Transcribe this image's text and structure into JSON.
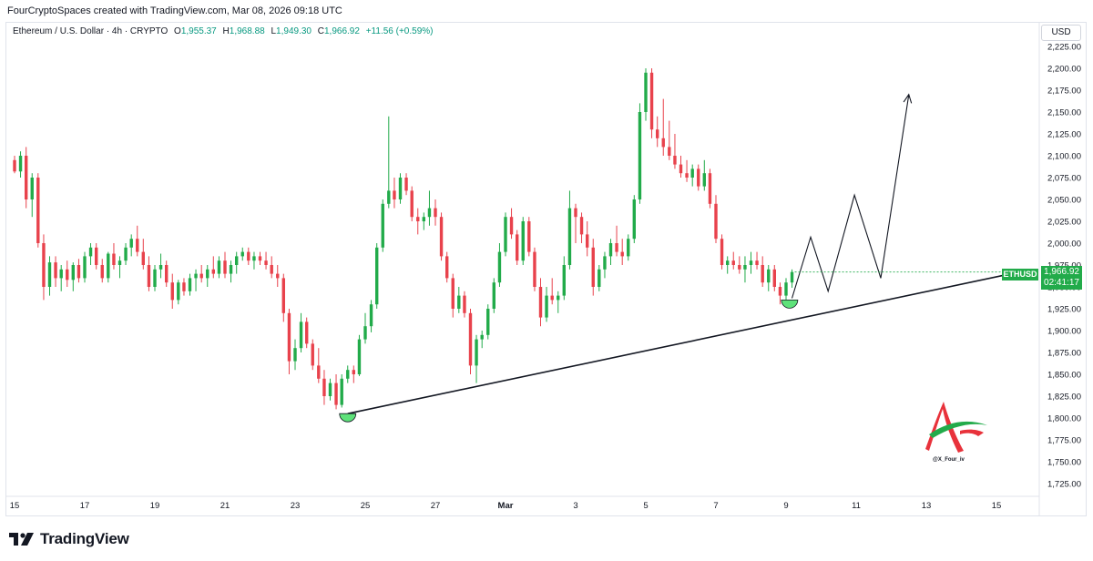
{
  "header": {
    "attribution": "FourCryptoSpaces created with TradingView.com, Mar 08, 2026 09:18 UTC"
  },
  "symbol": {
    "title": "Ethereum / U.S. Dollar · 4h · CRYPTO",
    "o_label": "O",
    "o_value": "1,955.37",
    "h_label": "H",
    "h_value": "1,968.88",
    "l_label": "L",
    "l_value": "1,949.30",
    "c_label": "C",
    "c_value": "1,966.92",
    "change": "+11.56 (+0.59%)"
  },
  "currency_button": "USD",
  "price_tag": {
    "symbol": "ETHUSD",
    "price": "1,966.92",
    "countdown": "02:41:17"
  },
  "watermark": {
    "handle": "@X_Four_iv"
  },
  "footer": {
    "brand": "TradingView"
  },
  "colors": {
    "up": "#22ab4a",
    "down": "#e8424c",
    "trendline": "#131722",
    "highlight": "#5ee27a"
  },
  "chart_data": {
    "type": "candlestick",
    "symbol": "ETHUSD",
    "timeframe": "4h",
    "ylim": [
      1710,
      2235
    ],
    "y_ticks": [
      "2,225.00",
      "2,200.00",
      "2,175.00",
      "2,150.00",
      "2,125.00",
      "2,100.00",
      "2,075.00",
      "2,050.00",
      "2,025.00",
      "2,000.00",
      "1,975.00",
      "1,950.00",
      "1,925.00",
      "1,900.00",
      "1,875.00",
      "1,850.00",
      "1,825.00",
      "1,800.00",
      "1,775.00",
      "1,750.00",
      "1,725.00"
    ],
    "y_tick_values": [
      2225,
      2200,
      2175,
      2150,
      2125,
      2100,
      2075,
      2050,
      2025,
      2000,
      1975,
      1950,
      1925,
      1900,
      1875,
      1850,
      1825,
      1800,
      1775,
      1750,
      1725
    ],
    "x_labels": [
      "15",
      "17",
      "19",
      "21",
      "23",
      "25",
      "27",
      "Mar",
      "3",
      "5",
      "7",
      "9",
      "11",
      "13",
      "15"
    ],
    "x_label_days": [
      15,
      17,
      19,
      21,
      23,
      25,
      27,
      29,
      31,
      33,
      35,
      37,
      39,
      41,
      43
    ],
    "x_range_days": [
      14.9,
      44.2
    ],
    "candles": [
      [
        15.0,
        2095,
        2100,
        2080,
        2082
      ],
      [
        15.17,
        2082,
        2105,
        2075,
        2100
      ],
      [
        15.33,
        2100,
        2110,
        2040,
        2050
      ],
      [
        15.5,
        2050,
        2080,
        2030,
        2075
      ],
      [
        15.67,
        2075,
        2080,
        1995,
        2000
      ],
      [
        15.83,
        2000,
        2010,
        1935,
        1950
      ],
      [
        16.0,
        1950,
        1985,
        1940,
        1978
      ],
      [
        16.17,
        1978,
        1985,
        1950,
        1960
      ],
      [
        16.33,
        1960,
        1975,
        1945,
        1970
      ],
      [
        16.5,
        1970,
        1980,
        1950,
        1958
      ],
      [
        16.67,
        1958,
        1978,
        1945,
        1975
      ],
      [
        16.83,
        1975,
        1982,
        1955,
        1960
      ],
      [
        17.0,
        1960,
        1990,
        1955,
        1985
      ],
      [
        17.17,
        1985,
        2000,
        1975,
        1995
      ],
      [
        17.33,
        1995,
        2000,
        1970,
        1975
      ],
      [
        17.5,
        1975,
        1982,
        1955,
        1960
      ],
      [
        17.67,
        1960,
        1990,
        1955,
        1988
      ],
      [
        17.83,
        1988,
        2000,
        1970,
        1975
      ],
      [
        18.0,
        1975,
        1985,
        1960,
        1980
      ],
      [
        18.17,
        1980,
        2000,
        1975,
        1995
      ],
      [
        18.33,
        1995,
        2010,
        1985,
        2005
      ],
      [
        18.5,
        2005,
        2020,
        1985,
        1990
      ],
      [
        18.67,
        1990,
        2005,
        1970,
        1975
      ],
      [
        18.83,
        1975,
        1985,
        1945,
        1950
      ],
      [
        19.0,
        1950,
        1975,
        1945,
        1970
      ],
      [
        19.17,
        1970,
        1988,
        1960,
        1975
      ],
      [
        19.33,
        1975,
        1980,
        1950,
        1955
      ],
      [
        19.5,
        1955,
        1965,
        1925,
        1935
      ],
      [
        19.67,
        1935,
        1958,
        1930,
        1955
      ],
      [
        19.83,
        1955,
        1960,
        1940,
        1945
      ],
      [
        20.0,
        1945,
        1965,
        1940,
        1960
      ],
      [
        20.17,
        1960,
        1970,
        1945,
        1965
      ],
      [
        20.33,
        1965,
        1975,
        1955,
        1960
      ],
      [
        20.5,
        1960,
        1975,
        1950,
        1970
      ],
      [
        20.67,
        1970,
        1985,
        1960,
        1965
      ],
      [
        20.83,
        1965,
        1985,
        1960,
        1980
      ],
      [
        21.0,
        1980,
        1990,
        1960,
        1965
      ],
      [
        21.17,
        1965,
        1980,
        1955,
        1975
      ],
      [
        21.33,
        1975,
        1990,
        1965,
        1985
      ],
      [
        21.5,
        1985,
        1995,
        1980,
        1990
      ],
      [
        21.67,
        1990,
        1995,
        1975,
        1980
      ],
      [
        21.83,
        1980,
        1990,
        1970,
        1985
      ],
      [
        22.0,
        1985,
        1990,
        1975,
        1980
      ],
      [
        22.17,
        1980,
        1990,
        1970,
        1975
      ],
      [
        22.33,
        1975,
        1985,
        1960,
        1965
      ],
      [
        22.5,
        1965,
        1975,
        1950,
        1960
      ],
      [
        22.67,
        1960,
        1965,
        1910,
        1920
      ],
      [
        22.83,
        1920,
        1925,
        1850,
        1865
      ],
      [
        23.0,
        1865,
        1890,
        1855,
        1880
      ],
      [
        23.17,
        1880,
        1920,
        1875,
        1910
      ],
      [
        23.33,
        1910,
        1915,
        1880,
        1885
      ],
      [
        23.5,
        1885,
        1890,
        1855,
        1860
      ],
      [
        23.67,
        1860,
        1880,
        1840,
        1845
      ],
      [
        23.83,
        1845,
        1855,
        1815,
        1825
      ],
      [
        24.0,
        1825,
        1845,
        1820,
        1840
      ],
      [
        24.17,
        1840,
        1850,
        1810,
        1815
      ],
      [
        24.33,
        1815,
        1850,
        1812,
        1845
      ],
      [
        24.5,
        1845,
        1860,
        1840,
        1855
      ],
      [
        24.67,
        1855,
        1860,
        1840,
        1850
      ],
      [
        24.83,
        1850,
        1895,
        1848,
        1890
      ],
      [
        25.0,
        1890,
        1920,
        1885,
        1905
      ],
      [
        25.17,
        1905,
        1935,
        1898,
        1930
      ],
      [
        25.33,
        1930,
        2000,
        1925,
        1995
      ],
      [
        25.5,
        1995,
        2050,
        1990,
        2045
      ],
      [
        25.67,
        2045,
        2145,
        2040,
        2060
      ],
      [
        25.83,
        2060,
        2075,
        2040,
        2050
      ],
      [
        26.0,
        2050,
        2080,
        2045,
        2075
      ],
      [
        26.17,
        2075,
        2080,
        2055,
        2060
      ],
      [
        26.33,
        2060,
        2065,
        2025,
        2030
      ],
      [
        26.5,
        2030,
        2040,
        2010,
        2025
      ],
      [
        26.67,
        2025,
        2035,
        2015,
        2030
      ],
      [
        26.83,
        2030,
        2060,
        2020,
        2040
      ],
      [
        27.0,
        2040,
        2050,
        2020,
        2030
      ],
      [
        27.17,
        2030,
        2035,
        1980,
        1985
      ],
      [
        27.33,
        1985,
        1990,
        1955,
        1960
      ],
      [
        27.5,
        1960,
        1965,
        1915,
        1925
      ],
      [
        27.67,
        1925,
        1950,
        1920,
        1940
      ],
      [
        27.83,
        1940,
        1945,
        1915,
        1920
      ],
      [
        28.0,
        1920,
        1925,
        1850,
        1860
      ],
      [
        28.17,
        1860,
        1895,
        1840,
        1890
      ],
      [
        28.33,
        1890,
        1900,
        1880,
        1895
      ],
      [
        28.5,
        1895,
        1930,
        1890,
        1925
      ],
      [
        28.67,
        1925,
        1960,
        1920,
        1955
      ],
      [
        28.83,
        1955,
        2000,
        1950,
        1990
      ],
      [
        29.0,
        1990,
        2035,
        1985,
        2030
      ],
      [
        29.17,
        2030,
        2040,
        2005,
        2010
      ],
      [
        29.33,
        2010,
        2015,
        1975,
        1980
      ],
      [
        29.5,
        1980,
        2030,
        1975,
        2025
      ],
      [
        29.67,
        2025,
        2030,
        1985,
        1990
      ],
      [
        29.83,
        1990,
        1995,
        1945,
        1950
      ],
      [
        30.0,
        1950,
        1960,
        1905,
        1915
      ],
      [
        30.17,
        1915,
        1950,
        1910,
        1940
      ],
      [
        30.33,
        1940,
        1960,
        1930,
        1935
      ],
      [
        30.5,
        1935,
        1945,
        1920,
        1940
      ],
      [
        30.67,
        1940,
        1985,
        1935,
        1975
      ],
      [
        30.83,
        1975,
        2060,
        1970,
        2040
      ],
      [
        31.0,
        2040,
        2045,
        2000,
        2030
      ],
      [
        31.17,
        2030,
        2035,
        2000,
        2010
      ],
      [
        31.33,
        2010,
        2025,
        1985,
        1995
      ],
      [
        31.5,
        1995,
        2005,
        1940,
        1950
      ],
      [
        31.67,
        1950,
        1975,
        1945,
        1970
      ],
      [
        31.83,
        1970,
        1990,
        1960,
        1985
      ],
      [
        32.0,
        1985,
        2005,
        1975,
        2000
      ],
      [
        32.17,
        2000,
        2020,
        1985,
        1990
      ],
      [
        32.33,
        1990,
        2005,
        1975,
        1985
      ],
      [
        32.5,
        1985,
        2010,
        1980,
        2005
      ],
      [
        32.67,
        2005,
        2055,
        2000,
        2050
      ],
      [
        32.83,
        2050,
        2160,
        2045,
        2150
      ],
      [
        33.0,
        2150,
        2200,
        2140,
        2195
      ],
      [
        33.17,
        2195,
        2200,
        2120,
        2130
      ],
      [
        33.33,
        2130,
        2145,
        2110,
        2120
      ],
      [
        33.5,
        2120,
        2165,
        2100,
        2110
      ],
      [
        33.67,
        2110,
        2140,
        2095,
        2100
      ],
      [
        33.83,
        2100,
        2125,
        2085,
        2090
      ],
      [
        34.0,
        2090,
        2100,
        2075,
        2080
      ],
      [
        34.17,
        2080,
        2095,
        2070,
        2075
      ],
      [
        34.33,
        2075,
        2090,
        2065,
        2085
      ],
      [
        34.5,
        2085,
        2090,
        2060,
        2065
      ],
      [
        34.67,
        2065,
        2095,
        2060,
        2080
      ],
      [
        34.83,
        2080,
        2085,
        2040,
        2045
      ],
      [
        35.0,
        2045,
        2055,
        2000,
        2005
      ],
      [
        35.17,
        2005,
        2010,
        1970,
        1975
      ],
      [
        35.33,
        1975,
        1985,
        1965,
        1980
      ],
      [
        35.5,
        1980,
        1990,
        1970,
        1975
      ],
      [
        35.67,
        1975,
        1985,
        1965,
        1970
      ],
      [
        35.83,
        1970,
        1985,
        1955,
        1975
      ],
      [
        36.0,
        1975,
        1990,
        1965,
        1980
      ],
      [
        36.17,
        1980,
        1990,
        1970,
        1975
      ],
      [
        36.33,
        1975,
        1985,
        1950,
        1955
      ],
      [
        36.5,
        1955,
        1975,
        1945,
        1970
      ],
      [
        36.67,
        1970,
        1975,
        1945,
        1950
      ],
      [
        36.83,
        1950,
        1955,
        1930,
        1940
      ],
      [
        37.0,
        1940,
        1960,
        1935,
        1955
      ],
      [
        37.17,
        1955,
        1970,
        1949,
        1967
      ]
    ],
    "annotations": {
      "trendline": [
        [
          24.5,
          1805
        ],
        [
          44.0,
          1970
        ]
      ],
      "projected_path": [
        [
          37.17,
          1937
        ],
        [
          37.7,
          2007
        ],
        [
          38.2,
          1945
        ],
        [
          38.95,
          2055
        ],
        [
          39.7,
          1960
        ],
        [
          40.5,
          2170
        ]
      ],
      "highlights": [
        [
          24.5,
          1805
        ],
        [
          37.1,
          1935
        ]
      ]
    }
  }
}
